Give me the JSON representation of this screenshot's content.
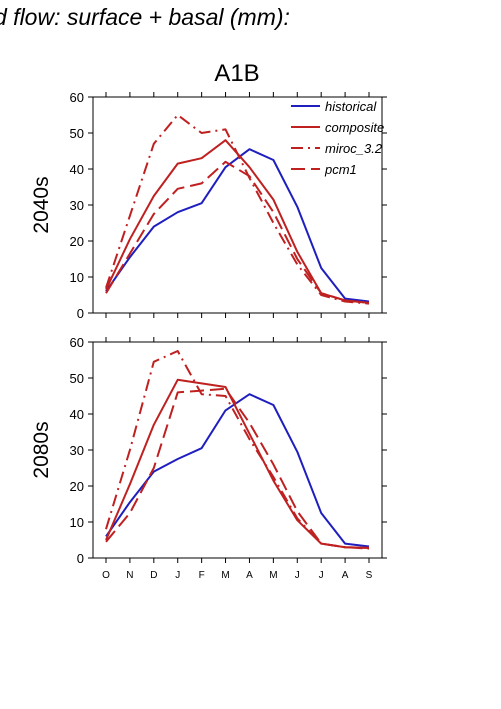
{
  "figure": {
    "title": "d flow: surface + basal (mm):"
  },
  "chart_data": [
    {
      "type": "line",
      "panel_title": "A1B",
      "ylabel": "2040s",
      "ylim": [
        0,
        60
      ],
      "yticks": [
        0,
        10,
        20,
        30,
        40,
        50,
        60
      ],
      "categories": [
        "O",
        "N",
        "D",
        "J",
        "F",
        "M",
        "A",
        "M",
        "J",
        "J",
        "A",
        "S"
      ],
      "show_xtick_labels": false,
      "legend": "top-right",
      "series": [
        {
          "name": "historical",
          "color": "#1f1fbf",
          "dash": "solid",
          "values": [
            6,
            15.5,
            24,
            28,
            30.5,
            40.5,
            45.5,
            42.5,
            29.5,
            12.5,
            4,
            3.2
          ]
        },
        {
          "name": "composite",
          "color": "#bf2020",
          "dash": "solid",
          "values": [
            6.5,
            20.5,
            32.5,
            41.5,
            43,
            48,
            40.5,
            31.5,
            17,
            5.5,
            3.5,
            2.8
          ]
        },
        {
          "name": "miroc_3.2",
          "color": "#bf2020",
          "dash": "dashdot",
          "values": [
            7,
            27,
            47,
            55,
            50,
            51,
            37.5,
            25,
            13.5,
            5,
            3.2,
            2.6
          ]
        },
        {
          "name": "pcm1",
          "color": "#bf2020",
          "dash": "dash",
          "values": [
            5.5,
            16.5,
            27.5,
            34.5,
            36,
            42,
            38,
            28,
            15,
            5.5,
            3.5,
            2.8
          ]
        }
      ]
    },
    {
      "type": "line",
      "panel_title": "",
      "ylabel": "2080s",
      "ylim": [
        0,
        60
      ],
      "yticks": [
        0,
        10,
        20,
        30,
        40,
        50,
        60
      ],
      "categories": [
        "O",
        "N",
        "D",
        "J",
        "F",
        "M",
        "A",
        "M",
        "J",
        "J",
        "A",
        "S"
      ],
      "show_xtick_labels": true,
      "series": [
        {
          "name": "historical",
          "color": "#1f1fbf",
          "dash": "solid",
          "values": [
            6,
            15.5,
            24,
            27.5,
            30.5,
            41,
            45.5,
            42.5,
            29.5,
            12.5,
            4,
            3.2
          ]
        },
        {
          "name": "composite",
          "color": "#bf2020",
          "dash": "solid",
          "values": [
            5,
            20.5,
            37,
            49.5,
            48.5,
            47.5,
            34.5,
            21.5,
            10.5,
            4,
            3,
            2.8
          ]
        },
        {
          "name": "miroc_3.2",
          "color": "#bf2020",
          "dash": "dashdot",
          "values": [
            8,
            30,
            54.5,
            57.5,
            45.5,
            45,
            33,
            22.5,
            11,
            4,
            3,
            2.6
          ]
        },
        {
          "name": "pcm1",
          "color": "#bf2020",
          "dash": "dash",
          "values": [
            4.5,
            12.5,
            25,
            46,
            46.5,
            47,
            37.5,
            26,
            13,
            4,
            3,
            2.8
          ]
        }
      ]
    }
  ]
}
